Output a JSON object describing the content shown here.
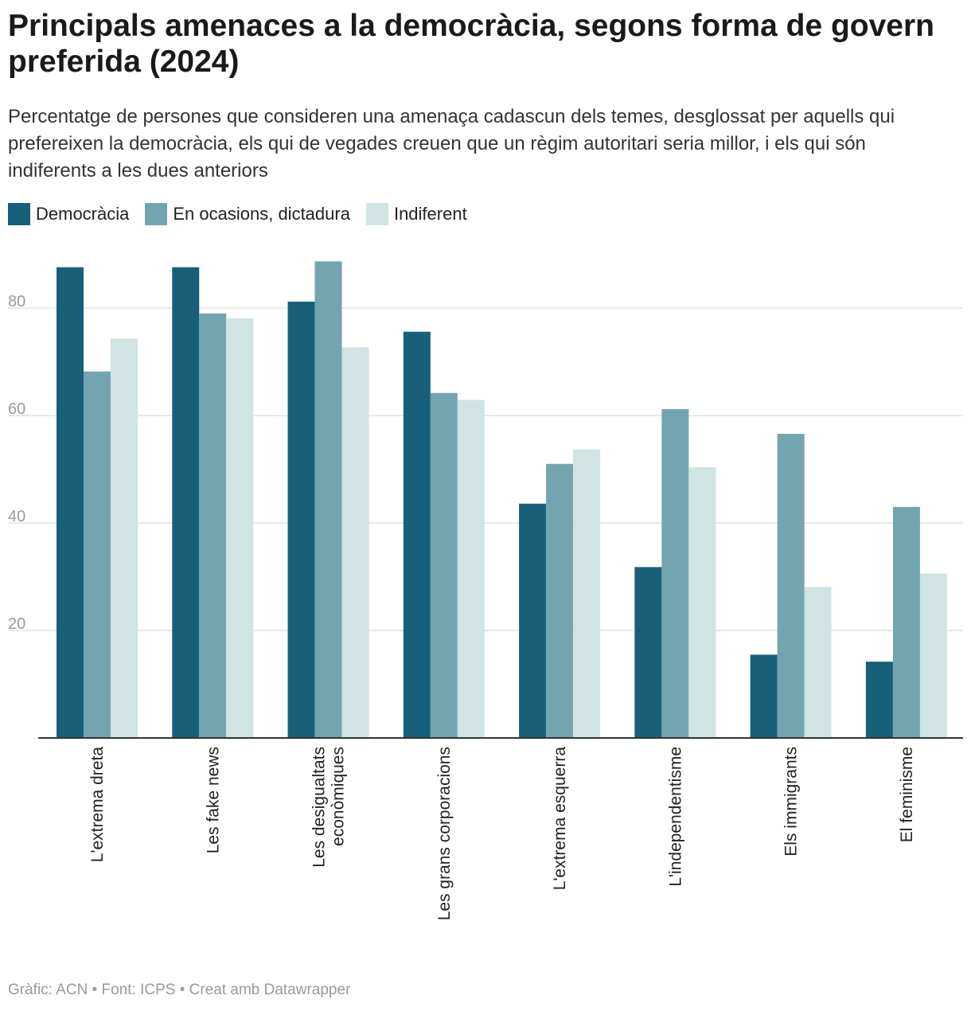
{
  "title": "Principals amenaces a la democràcia, segons forma de govern preferida (2024)",
  "subtitle": "Percentatge de persones que consideren una amenaça cadascun dels temes, desglossat per aquells qui prefereixen la democràcia, els qui de vegades creuen que un règim autoritari seria millor, i els qui són indiferents a les dues anteriors",
  "footer": "Gràfic: ACN • Font: ICPS • Creat amb Datawrapper",
  "colors": {
    "democracia": "#186079",
    "dictadura": "#73a5b1",
    "indiferent": "#cfe4e3"
  },
  "chart_data": {
    "type": "bar",
    "title": "Principals amenaces a la democràcia, segons forma de govern preferida (2024)",
    "categories": [
      "L'extrema dreta",
      "Les fake news",
      "Les desigualtats econòmiques",
      "Les grans corporacions",
      "L'extrema esquerra",
      "L'independentisme",
      "Els immigrants",
      "El feminisme"
    ],
    "category_lines": [
      [
        "L'extrema dreta"
      ],
      [
        "Les fake news"
      ],
      [
        "Les desigualtats",
        "econòmiques"
      ],
      [
        "Les grans corporacions"
      ],
      [
        "L'extrema esquerra"
      ],
      [
        "L'independentisme"
      ],
      [
        "Els immigrants"
      ],
      [
        "El feminisme"
      ]
    ],
    "series": [
      {
        "name": "Democràcia",
        "color": "#186079",
        "values": [
          87.6,
          87.6,
          81.2,
          75.6,
          43.6,
          31.8,
          15.5,
          14.2
        ]
      },
      {
        "name": "En ocasions, dictadura",
        "color": "#73a5b1",
        "values": [
          68.2,
          79.0,
          88.7,
          64.2,
          51.0,
          61.2,
          56.6,
          43.0
        ]
      },
      {
        "name": "Indiferent",
        "color": "#cfe4e3",
        "values": [
          74.3,
          78.1,
          72.7,
          62.9,
          53.7,
          50.4,
          28.1,
          30.6
        ]
      }
    ],
    "yticks": [
      20,
      40,
      60,
      80
    ],
    "ylim": [
      0,
      90
    ],
    "grid": true,
    "legend_position": "top-left"
  }
}
